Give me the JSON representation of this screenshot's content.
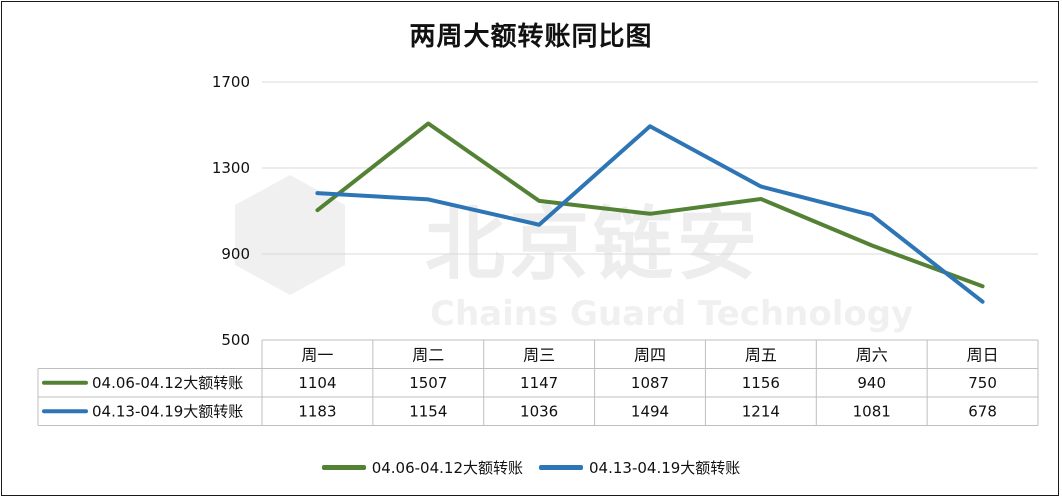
{
  "chart_data": {
    "type": "line",
    "title": "两周大额转账同比图",
    "categories": [
      "周一",
      "周二",
      "周三",
      "周四",
      "周五",
      "周六",
      "周日"
    ],
    "series": [
      {
        "name": "04.06-04.12大额转账",
        "color": "#548235",
        "values": [
          1104,
          1507,
          1147,
          1087,
          1156,
          940,
          750
        ]
      },
      {
        "name": "04.13-04.19大额转账",
        "color": "#2E75B6",
        "values": [
          1183,
          1154,
          1036,
          1494,
          1214,
          1081,
          678
        ]
      }
    ],
    "ylim": [
      500,
      1700
    ],
    "yticks": [
      500,
      900,
      1300,
      1700
    ],
    "grid": true,
    "data_table": true,
    "legend_position": "bottom"
  },
  "watermark": {
    "text_cn": "北京链安",
    "text_en": "Chains Guard Technology"
  }
}
